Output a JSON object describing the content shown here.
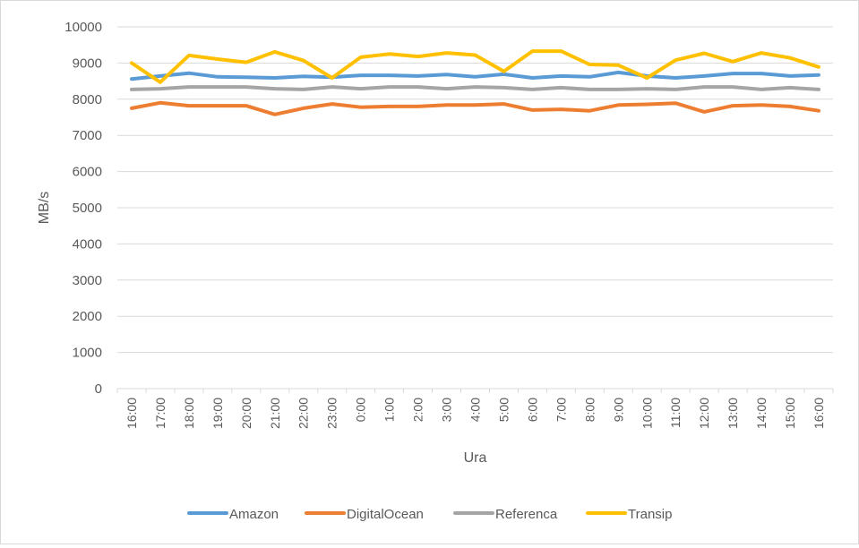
{
  "chart_data": {
    "type": "line",
    "xlabel": "Ura",
    "ylabel": "MB/s",
    "ylim": [
      0,
      10000
    ],
    "yticks": [
      0,
      1000,
      2000,
      3000,
      4000,
      5000,
      6000,
      7000,
      8000,
      9000,
      10000
    ],
    "grid": "horizontal",
    "legend": "bottom",
    "categories": [
      "16:00",
      "17:00",
      "18:00",
      "19:00",
      "20:00",
      "21:00",
      "22:00",
      "23:00",
      "0:00",
      "1:00",
      "2:00",
      "3:00",
      "4:00",
      "5:00",
      "6:00",
      "7:00",
      "8:00",
      "9:00",
      "10:00",
      "11:00",
      "12:00",
      "13:00",
      "14:00",
      "15:00",
      "16:00"
    ],
    "series": [
      {
        "name": "Amazon",
        "color": "#5b9bd5",
        "values": [
          8560,
          8640,
          8720,
          8620,
          8610,
          8590,
          8630,
          8610,
          8660,
          8660,
          8640,
          8680,
          8620,
          8690,
          8590,
          8640,
          8620,
          8740,
          8640,
          8590,
          8640,
          8710,
          8710,
          8640,
          8670
        ]
      },
      {
        "name": "DigitalOcean",
        "color": "#ed7d31",
        "values": [
          7750,
          7900,
          7820,
          7820,
          7820,
          7580,
          7750,
          7870,
          7780,
          7800,
          7800,
          7840,
          7840,
          7870,
          7700,
          7720,
          7680,
          7840,
          7860,
          7890,
          7650,
          7820,
          7840,
          7800,
          7680
        ]
      },
      {
        "name": "Referenca",
        "color": "#a5a5a5",
        "values": [
          8270,
          8290,
          8340,
          8340,
          8340,
          8290,
          8270,
          8340,
          8290,
          8340,
          8340,
          8290,
          8340,
          8320,
          8270,
          8320,
          8270,
          8270,
          8290,
          8270,
          8340,
          8340,
          8270,
          8320,
          8270
        ]
      },
      {
        "name": "Transip",
        "color": "#ffc000",
        "values": [
          9000,
          8470,
          9210,
          9110,
          9020,
          9310,
          9070,
          8590,
          9160,
          9250,
          9180,
          9280,
          9220,
          8770,
          9330,
          9330,
          8960,
          8940,
          8590,
          9080,
          9270,
          9040,
          9280,
          9140,
          8890
        ]
      }
    ]
  }
}
